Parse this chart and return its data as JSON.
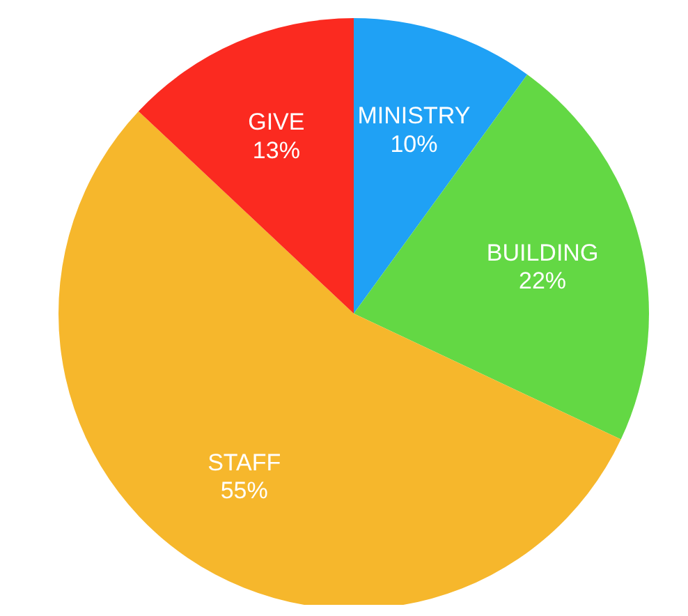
{
  "chart_data": {
    "type": "pie",
    "categories": [
      "MINISTRY",
      "BUILDING",
      "STAFF",
      "GIVE"
    ],
    "values": [
      10,
      22,
      55,
      13
    ],
    "colors": [
      "#1fa1f5",
      "#63d844",
      "#f6b72c",
      "#fb2a20"
    ],
    "value_labels": [
      "10%",
      "22%",
      "55%",
      "13%"
    ]
  }
}
